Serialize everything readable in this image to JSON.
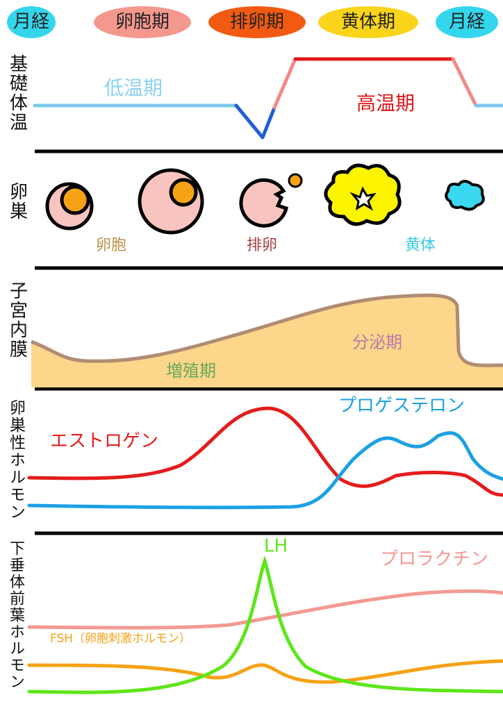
{
  "phases": [
    "月経",
    "卵胞期",
    "排卵期",
    "黄体期",
    "月経"
  ],
  "sections": [
    {
      "title": "基礎体温",
      "labels": [
        "低温期",
        "高温期"
      ]
    },
    {
      "title": "卵巣",
      "labels": [
        "卵胞",
        "排卵",
        "黄体"
      ]
    },
    {
      "title": "子宮内膜",
      "labels": [
        "増殖期",
        "分泌期"
      ]
    },
    {
      "title": "卵巣性ホルモン",
      "labels": [
        "エストロゲン",
        "プロゲステロン"
      ]
    },
    {
      "title": "下垂体前葉ホルモン",
      "labels": [
        "LH",
        "プロラクチン",
        "FSH（卵胞刺激ホルモン）"
      ]
    }
  ]
}
